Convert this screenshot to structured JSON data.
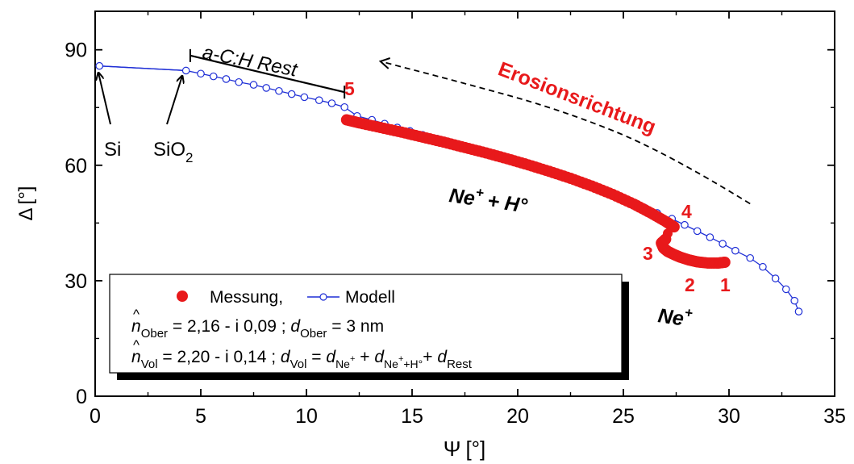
{
  "chart_data": {
    "type": "scatter",
    "xlabel_symbol": "Ψ",
    "xlabel_unit": "[°]",
    "ylabel_symbol": "Δ",
    "ylabel_unit": "[°]",
    "xlim": [
      0,
      35
    ],
    "ylim": [
      0,
      100
    ],
    "xticks": [
      0,
      5,
      10,
      15,
      20,
      25,
      30,
      35
    ],
    "yticks": [
      0,
      30,
      60,
      90
    ],
    "grid": false,
    "colors": {
      "measurement": "#e8191b",
      "model": "#1f2fd6",
      "annotation": "#e8191b"
    },
    "series": [
      {
        "name": "Messung,",
        "marker": "filled-circle",
        "points": [
          [
            11.9,
            71.8
          ],
          [
            12.5,
            71.0
          ],
          [
            13.5,
            69.8
          ],
          [
            14.5,
            68.6
          ],
          [
            15.5,
            67.3
          ],
          [
            16.5,
            66.0
          ],
          [
            17.5,
            64.6
          ],
          [
            18.5,
            63.2
          ],
          [
            19.5,
            61.7
          ],
          [
            20.5,
            60.1
          ],
          [
            21.5,
            58.4
          ],
          [
            22.5,
            56.6
          ],
          [
            23.5,
            54.6
          ],
          [
            24.5,
            52.4
          ],
          [
            25.5,
            49.9
          ],
          [
            26.3,
            47.6
          ],
          [
            27.0,
            45.4
          ],
          [
            27.4,
            44.0
          ],
          [
            27.0,
            40.8
          ],
          [
            26.8,
            39.8
          ],
          [
            26.9,
            38.5
          ],
          [
            27.1,
            37.6
          ],
          [
            27.4,
            36.8
          ],
          [
            27.7,
            36.1
          ],
          [
            28.1,
            35.4
          ],
          [
            28.5,
            34.9
          ],
          [
            29.0,
            34.6
          ],
          [
            29.5,
            34.6
          ],
          [
            29.8,
            34.8
          ]
        ]
      },
      {
        "name": "Modell",
        "marker": "line-open-circle",
        "line_points": [
          [
            0.2,
            85.8
          ],
          [
            4.3,
            84.6
          ]
        ],
        "points": [
          [
            0.2,
            85.8
          ],
          [
            4.3,
            84.6
          ],
          [
            5.0,
            83.8
          ],
          [
            5.6,
            83.1
          ],
          [
            6.2,
            82.4
          ],
          [
            6.8,
            81.6
          ],
          [
            7.5,
            80.9
          ],
          [
            8.1,
            80.1
          ],
          [
            8.7,
            79.3
          ],
          [
            9.3,
            78.5
          ],
          [
            9.9,
            77.7
          ],
          [
            10.6,
            76.9
          ],
          [
            11.2,
            76.1
          ],
          [
            11.8,
            75.1
          ],
          [
            12.4,
            72.8
          ],
          [
            13.1,
            71.8
          ],
          [
            13.7,
            70.8
          ],
          [
            14.3,
            69.8
          ],
          [
            14.9,
            68.9
          ],
          [
            15.5,
            67.9
          ],
          [
            16.2,
            66.9
          ],
          [
            16.8,
            66.0
          ],
          [
            17.4,
            65.0
          ],
          [
            18.0,
            64.0
          ],
          [
            18.6,
            63.0
          ],
          [
            19.2,
            62.0
          ],
          [
            19.9,
            60.9
          ],
          [
            20.5,
            59.9
          ],
          [
            21.1,
            58.8
          ],
          [
            21.7,
            57.7
          ],
          [
            22.3,
            56.6
          ],
          [
            22.9,
            55.4
          ],
          [
            23.6,
            54.2
          ],
          [
            24.2,
            53.0
          ],
          [
            24.8,
            51.7
          ],
          [
            25.4,
            50.4
          ],
          [
            26.0,
            49.0
          ],
          [
            26.6,
            47.6
          ],
          [
            27.3,
            46.1
          ],
          [
            27.9,
            44.5
          ],
          [
            28.5,
            42.9
          ],
          [
            29.1,
            41.3
          ],
          [
            29.7,
            39.6
          ],
          [
            30.3,
            37.8
          ],
          [
            31.0,
            35.9
          ],
          [
            31.6,
            33.6
          ],
          [
            32.2,
            30.6
          ],
          [
            32.7,
            27.8
          ],
          [
            33.1,
            24.8
          ],
          [
            33.3,
            22.0
          ]
        ]
      }
    ],
    "erosion_curve": [
      [
        31.0,
        50.0
      ],
      [
        27.0,
        63.5
      ],
      [
        22.0,
        74.5
      ],
      [
        17.0,
        82.0
      ],
      [
        13.5,
        87.0
      ]
    ],
    "bracket": {
      "label": "a-C:H  Rest",
      "from": [
        4.5,
        88.5
      ],
      "to": [
        11.8,
        79.0
      ]
    },
    "annotations": {
      "si": "Si",
      "sio2_base": "SiO",
      "sio2_sub": "2",
      "erosion": "Erosionsrichtung",
      "ne_h_plus": "Ne",
      "ne_h_sup": "+",
      "ne_h_rest": "+ H°",
      "ne_plus": "Ne",
      "ne_plus_sup": "+",
      "marker_1": "1",
      "marker_2": "2",
      "marker_3": "3",
      "marker_4": "4",
      "marker_5": "5"
    },
    "legend": {
      "measurement": "Messung,",
      "model": "Modell",
      "line1": {
        "n": "n",
        "n_sub": "Ober",
        "eq": " = 2,16 - i 0,09 ; ",
        "d": "d",
        "d_sub": "Ober",
        "rest": " = 3 nm"
      },
      "line2": {
        "n": "n",
        "n_sub": "Vol",
        "eq": "   = 2,20 - i 0,14 ; ",
        "d": "d",
        "d_sub": "Vol",
        "eq2": "  = ",
        "d1": "d",
        "d1_sub": "Ne",
        "d1_sup": "+",
        "plus1": " + ",
        "d2": "d",
        "d2_sub": "Ne",
        "d2_sub_sup1": "+",
        "d2_sub_tail": "+H°",
        "plus2": "+ ",
        "d3": "d",
        "d3_sub": "Rest"
      }
    }
  }
}
